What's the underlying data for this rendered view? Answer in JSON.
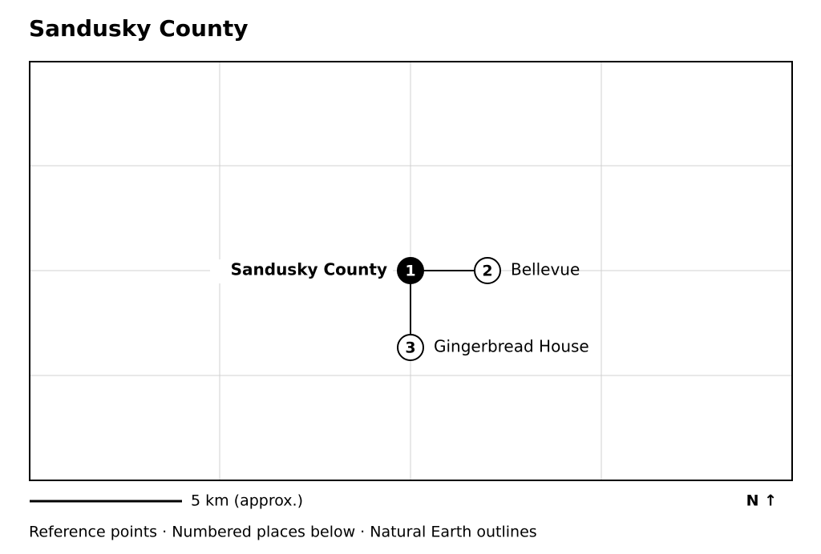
{
  "title": "Sandusky County",
  "places": [
    {
      "number": 1,
      "label": "Sandusky County"
    },
    {
      "number": 2,
      "label": "Bellevue"
    },
    {
      "number": 3,
      "label": "Gingerbread House"
    }
  ],
  "scale_label": "5 km (approx.)",
  "north_label": "N ↑",
  "footer": "Reference points · Numbered places below · Natural Earth outlines"
}
